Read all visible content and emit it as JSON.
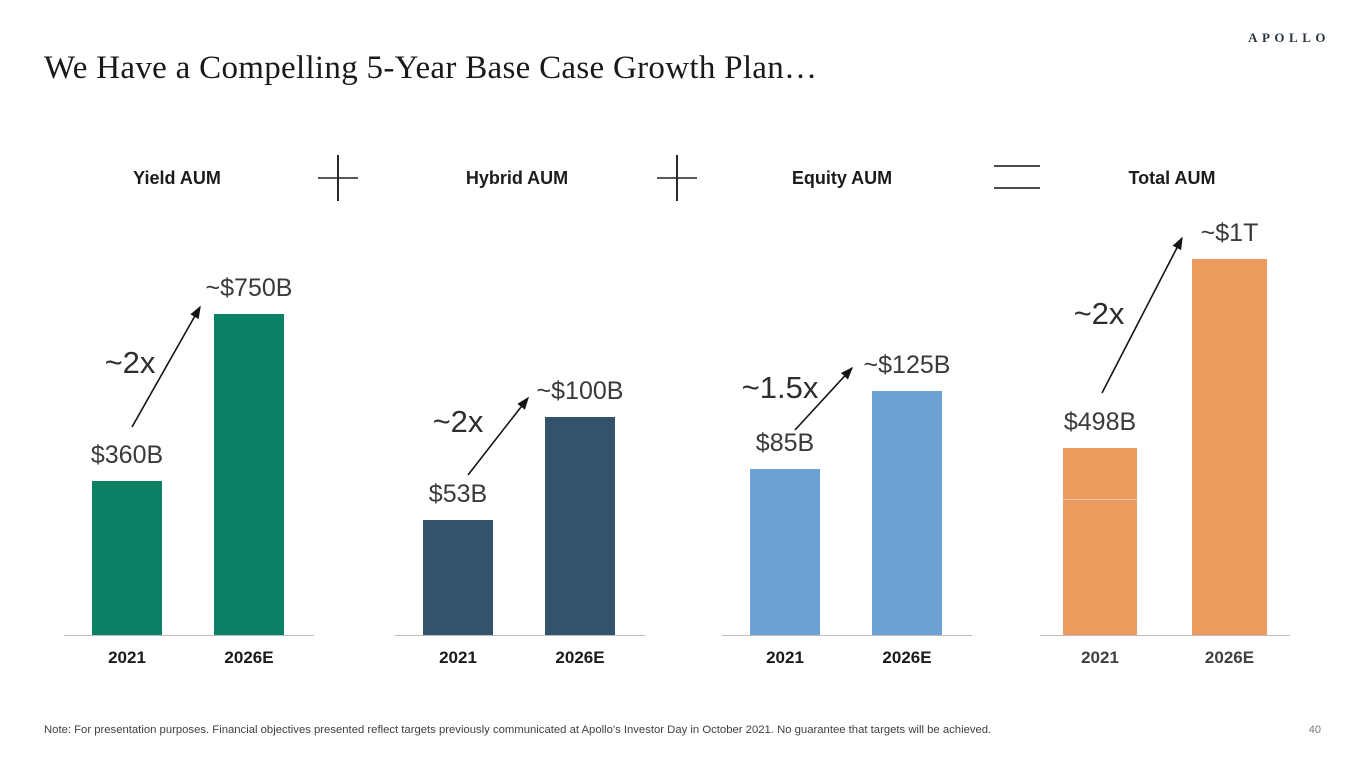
{
  "slide": {
    "logo_text": "APOLLO",
    "title": "We Have a Compelling 5-Year Base Case Growth Plan…",
    "footnote": "Note: For presentation purposes. Financial objectives presented reflect targets previously communicated at Apollo's Investor Day in October 2021. No guarantee that targets will be achieved.",
    "page_number": "40",
    "header_operators": [
      "+",
      "+",
      "="
    ]
  },
  "chart_data": [
    {
      "type": "bar",
      "title": "Yield AUM",
      "categories": [
        "2021",
        "2026E"
      ],
      "values": [
        360,
        750
      ],
      "value_labels": [
        "$360B",
        "~$750B"
      ],
      "growth_label": "~2x",
      "bar_color": "#0a8165",
      "category_color": "#1a1a1a",
      "legend": "none",
      "grid": "off"
    },
    {
      "type": "bar",
      "title": "Hybrid AUM",
      "categories": [
        "2021",
        "2026E"
      ],
      "values": [
        53,
        100
      ],
      "value_labels": [
        "$53B",
        "~$100B"
      ],
      "growth_label": "~2x",
      "bar_color": "#33526e",
      "category_color": "#1a1a1a",
      "legend": "none",
      "grid": "off"
    },
    {
      "type": "bar",
      "title": "Equity AUM",
      "categories": [
        "2021",
        "2026E"
      ],
      "values": [
        85,
        125
      ],
      "value_labels": [
        "$85B",
        "~$125B"
      ],
      "growth_label": "~1.5x",
      "bar_color": "#6ba1d3",
      "category_color": "#1a1a1a",
      "legend": "none",
      "grid": "off"
    },
    {
      "type": "bar",
      "title": "Total AUM",
      "categories": [
        "2021",
        "2026E"
      ],
      "values": [
        498,
        1000
      ],
      "value_labels": [
        "$498B",
        "~$1T"
      ],
      "growth_label": "~2x",
      "bar_color": "#ec9b5e",
      "category_color": "#404040",
      "legend": "none",
      "grid": "off"
    }
  ]
}
